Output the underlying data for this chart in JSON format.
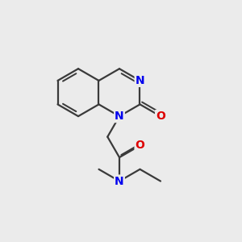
{
  "bg_color": "#ebebeb",
  "bond_color": "#3a3a3a",
  "bond_width": 1.6,
  "atom_colors": {
    "N": "#0000ee",
    "O": "#dd0000"
  },
  "figsize": [
    3.0,
    3.0
  ],
  "dpi": 100
}
